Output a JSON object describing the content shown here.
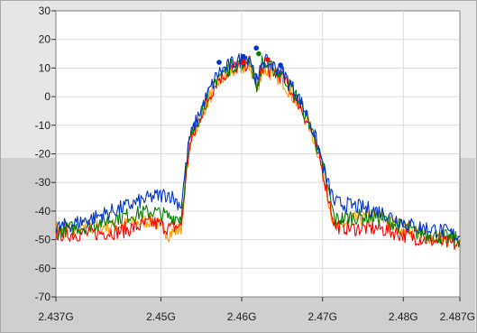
{
  "chart_data": {
    "type": "line",
    "title": "",
    "xlabel": "",
    "ylabel": "",
    "xlim": [
      2.437,
      2.487
    ],
    "ylim": [
      -70,
      30
    ],
    "grid": true,
    "x_ticks": [
      {
        "value": 2.437,
        "label": "2.437G"
      },
      {
        "value": 2.45,
        "label": "2.45G"
      },
      {
        "value": 2.46,
        "label": "2.46G"
      },
      {
        "value": 2.47,
        "label": "2.47G"
      },
      {
        "value": 2.48,
        "label": "2.48G"
      },
      {
        "value": 2.487,
        "label": "2.487G"
      }
    ],
    "y_ticks": [
      {
        "value": 30,
        "label": "30"
      },
      {
        "value": 20,
        "label": "20"
      },
      {
        "value": 10,
        "label": "10"
      },
      {
        "value": 0,
        "label": "0"
      },
      {
        "value": -10,
        "label": "-10"
      },
      {
        "value": -20,
        "label": "-20"
      },
      {
        "value": -30,
        "label": "-30"
      },
      {
        "value": -40,
        "label": "-40"
      },
      {
        "value": -50,
        "label": "-50"
      },
      {
        "value": -60,
        "label": "-60"
      },
      {
        "value": -70,
        "label": "-70"
      }
    ],
    "series": [
      {
        "color": "#ff9900",
        "x": [
          2.437,
          2.441,
          2.445,
          2.449,
          2.451,
          2.4525,
          2.4535,
          2.455,
          2.457,
          2.459,
          2.461,
          2.462,
          2.4625,
          2.463,
          2.465,
          2.467,
          2.4685,
          2.4695,
          2.4705,
          2.4715,
          2.4735,
          2.477,
          2.481,
          2.485,
          2.487
        ],
        "y": [
          -46,
          -46,
          -45,
          -43,
          -48,
          -46,
          -18,
          -6,
          5,
          9,
          11,
          1,
          10,
          9,
          6,
          -3,
          -11,
          -20,
          -32,
          -47,
          -43,
          -42,
          -47,
          -50,
          -51
        ]
      },
      {
        "color": "#ff0000",
        "x": [
          2.437,
          2.441,
          2.445,
          2.449,
          2.451,
          2.4525,
          2.4535,
          2.455,
          2.457,
          2.459,
          2.461,
          2.462,
          2.4625,
          2.463,
          2.465,
          2.467,
          2.4685,
          2.4695,
          2.4705,
          2.4715,
          2.4735,
          2.477,
          2.481,
          2.485,
          2.487
        ],
        "y": [
          -48,
          -48,
          -47,
          -44,
          -46,
          -45,
          -18,
          -6,
          6,
          10,
          12,
          2,
          11,
          10,
          7,
          -2,
          -11,
          -20,
          -32,
          -45,
          -46,
          -46,
          -49,
          -51,
          -52
        ]
      },
      {
        "color": "#008000",
        "x": [
          2.437,
          2.441,
          2.445,
          2.449,
          2.451,
          2.4525,
          2.4535,
          2.455,
          2.457,
          2.459,
          2.461,
          2.462,
          2.4625,
          2.463,
          2.465,
          2.467,
          2.4685,
          2.4695,
          2.4705,
          2.4715,
          2.4735,
          2.477,
          2.481,
          2.485,
          2.487
        ],
        "y": [
          -47,
          -45,
          -42,
          -40,
          -42,
          -42,
          -16,
          -5,
          7,
          11,
          13,
          3,
          12,
          11,
          8,
          -1,
          -10,
          -19,
          -30,
          -43,
          -42,
          -42,
          -47,
          -49,
          -50
        ]
      },
      {
        "color": "#0033cc",
        "x": [
          2.437,
          2.441,
          2.445,
          2.449,
          2.451,
          2.4525,
          2.4535,
          2.455,
          2.457,
          2.459,
          2.461,
          2.462,
          2.4625,
          2.463,
          2.465,
          2.467,
          2.4685,
          2.4695,
          2.4705,
          2.4715,
          2.4735,
          2.477,
          2.481,
          2.485,
          2.487
        ],
        "y": [
          -46,
          -43,
          -39,
          -35,
          -34,
          -38,
          -15,
          -4,
          8,
          12,
          14,
          4,
          13,
          12,
          9,
          0,
          -9,
          -18,
          -29,
          -37,
          -38,
          -40,
          -45,
          -47,
          -49
        ]
      }
    ],
    "markers": [
      {
        "x": 2.4572,
        "y": 12,
        "color": "#0033cc"
      },
      {
        "x": 2.4602,
        "y": 14,
        "color": "#0033cc"
      },
      {
        "x": 2.4618,
        "y": 17,
        "color": "#0033cc"
      },
      {
        "x": 2.4648,
        "y": 11,
        "color": "#0033cc"
      },
      {
        "x": 2.4602,
        "y": 12,
        "color": "#ff0000"
      },
      {
        "x": 2.4621,
        "y": 15,
        "color": "#008000"
      },
      {
        "x": 2.4632,
        "y": 13,
        "color": "#ff0000"
      }
    ]
  }
}
